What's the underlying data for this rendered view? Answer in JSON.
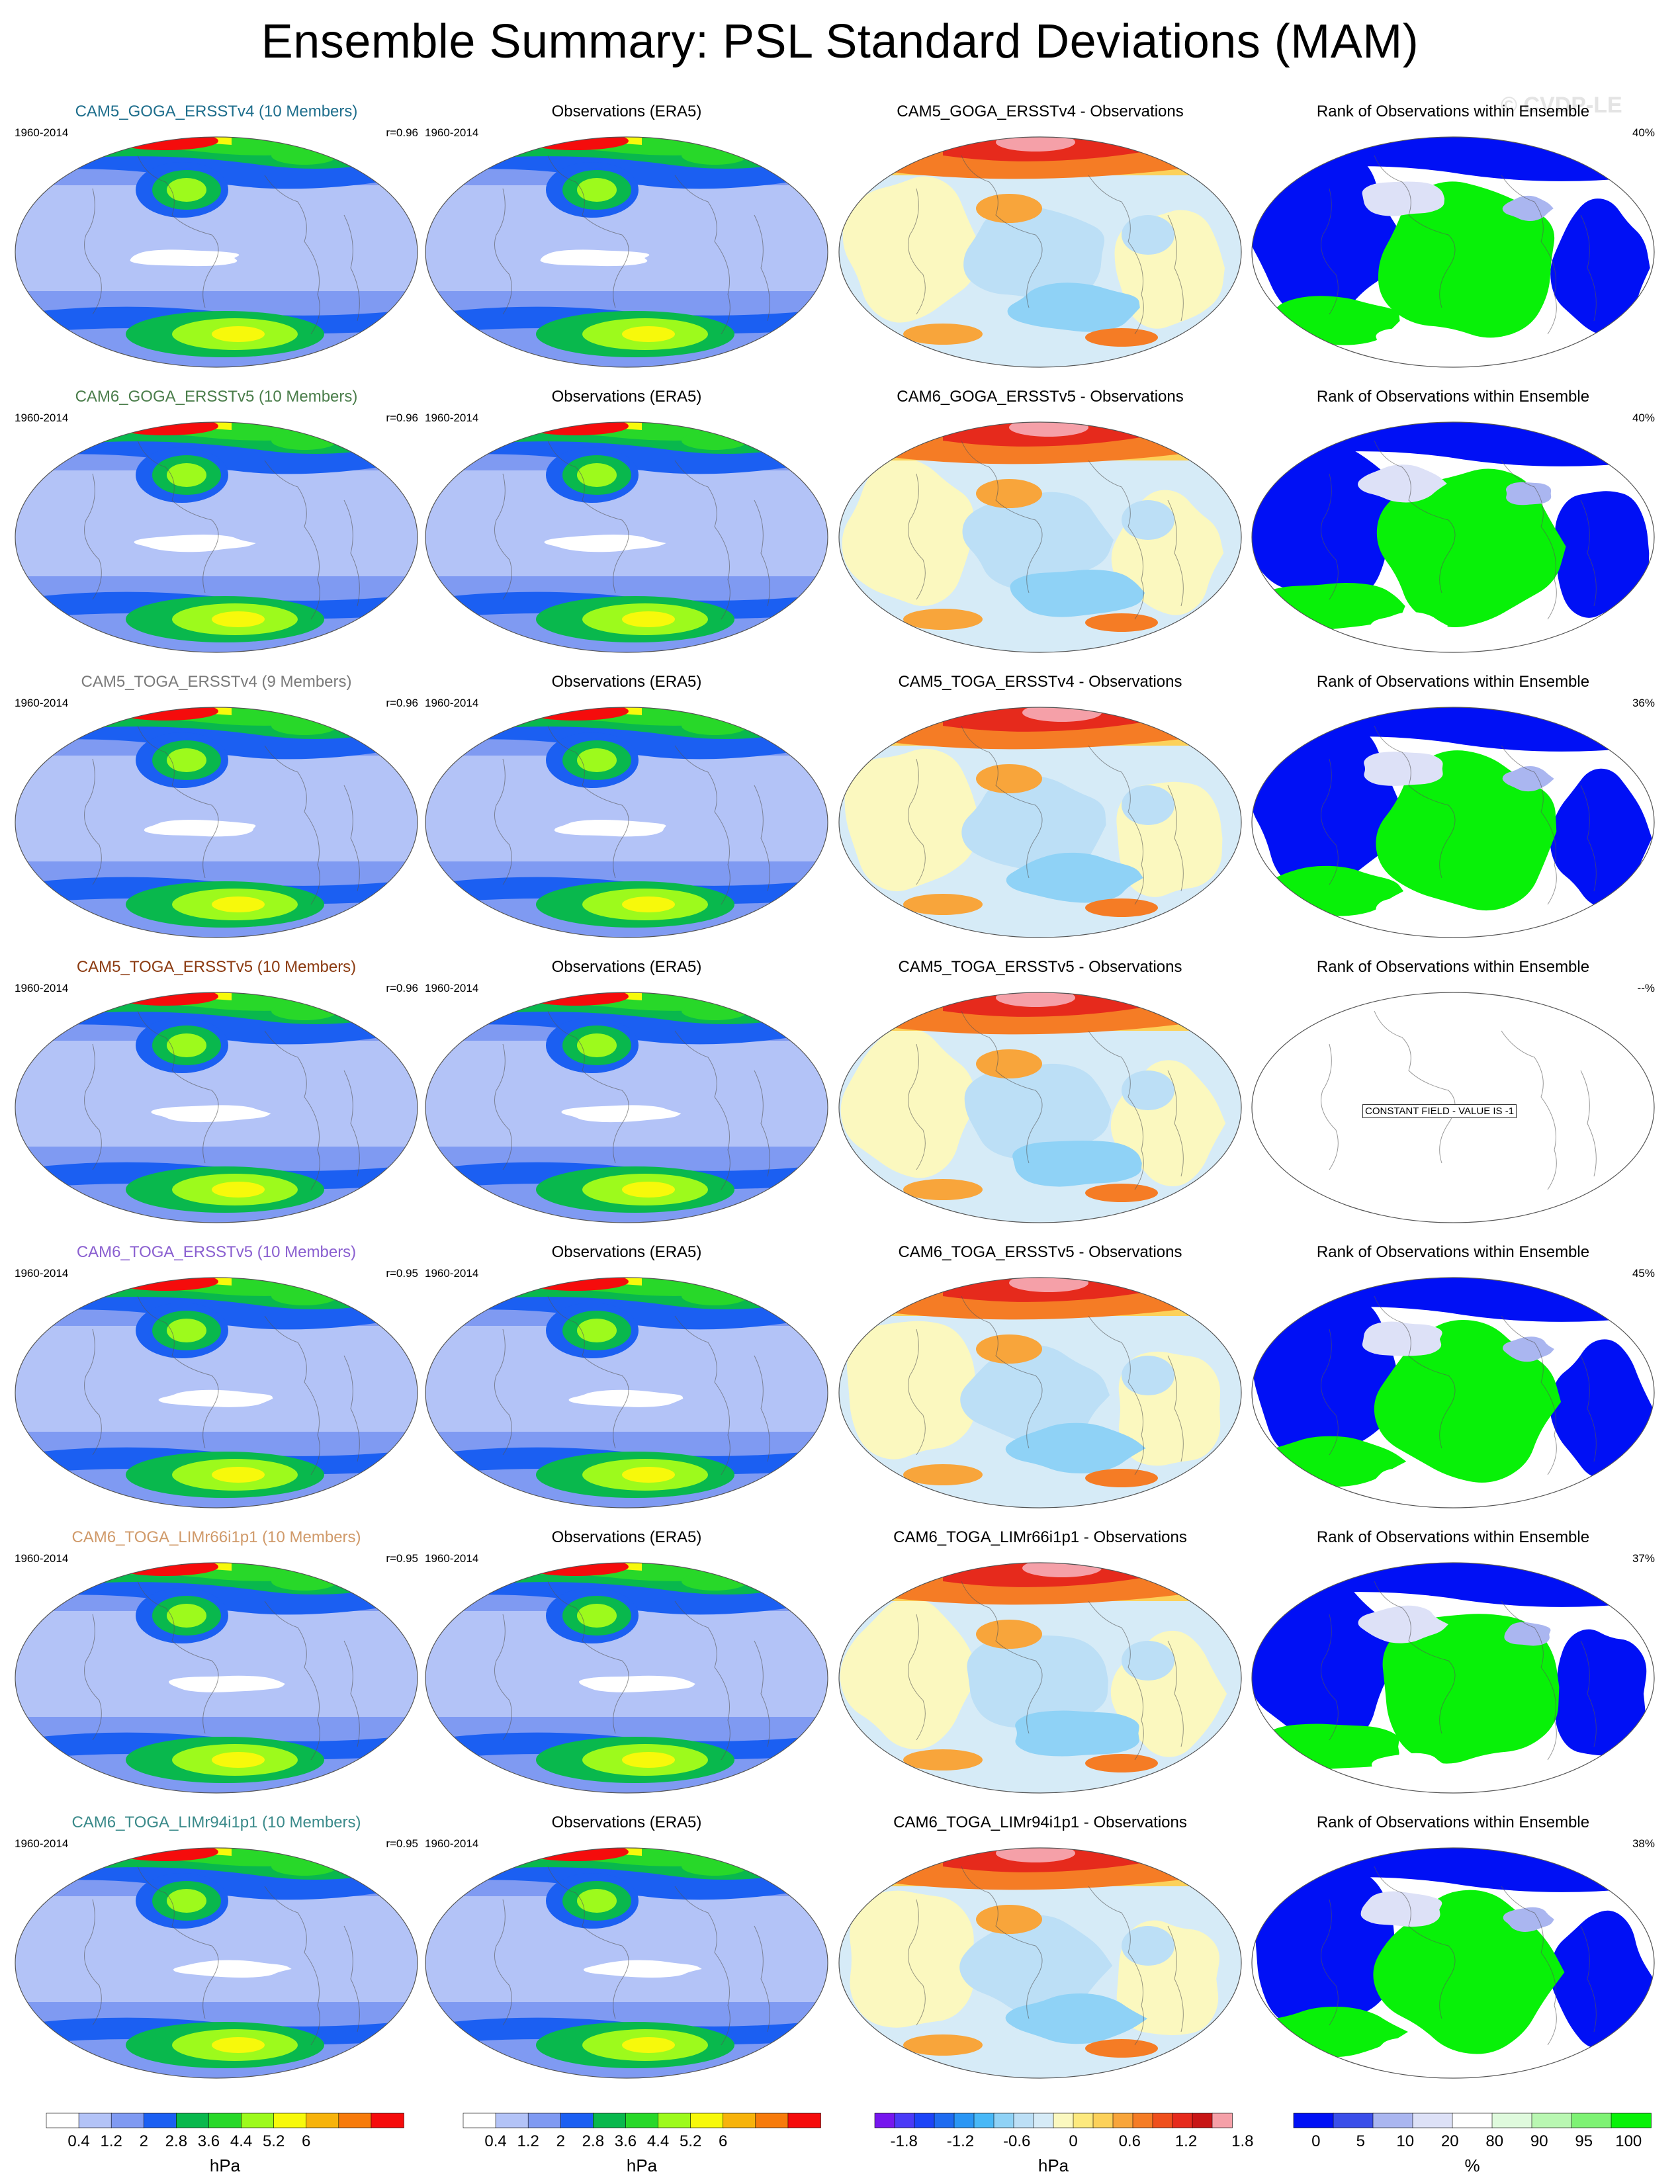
{
  "title": "Ensemble Summary: PSL Standard Deviations (MAM)",
  "watermark": "© CVDP-LE",
  "colors": {
    "std_scale": [
      "#ffffff",
      "#b3c3f7",
      "#7f9af2",
      "#1b5ff2",
      "#09b84d",
      "#28d829",
      "#9dfa1c",
      "#f7f90b",
      "#f7b30b",
      "#f77b0b",
      "#f50c0c"
    ],
    "diff_scale": [
      "#7616ee",
      "#4a3af7",
      "#1c44f7",
      "#1e6bf0",
      "#2a96f4",
      "#48b8f7",
      "#8fd2f6",
      "#bcdff6",
      "#d6ebf7",
      "#fbf8bf",
      "#fde97e",
      "#fcd15a",
      "#f8a53b",
      "#f57c25",
      "#ef4f1c",
      "#e62a1c",
      "#c81616",
      "#f5a0a8"
    ],
    "rank_scale": [
      "#0010f5",
      "#3a4ee9",
      "#aab6f0",
      "#dde1f7",
      "#ffffff",
      "#dffadd",
      "#b9f7b2",
      "#7ef274",
      "#08f108"
    ]
  },
  "colorbars": [
    {
      "ticks": [
        "0.4",
        "1.2",
        "2",
        "2.8",
        "3.6",
        "4.4",
        "5.2",
        "6"
      ],
      "unit": "hPa",
      "type": "std"
    },
    {
      "ticks": [
        "0.4",
        "1.2",
        "2",
        "2.8",
        "3.6",
        "4.4",
        "5.2",
        "6"
      ],
      "unit": "hPa",
      "type": "std"
    },
    {
      "ticks": [
        "-1.8",
        "-1.2",
        "-0.6",
        "0",
        "0.6",
        "1.2",
        "1.8"
      ],
      "unit": "hPa",
      "type": "diff"
    },
    {
      "ticks": [
        "0",
        "5",
        "10",
        "20",
        "80",
        "90",
        "95",
        "100"
      ],
      "unit": "%",
      "type": "rank"
    }
  ],
  "rows": [
    {
      "model": {
        "title": "CAM5_GOGA_ERSSTv4 (10 Members)",
        "color": "#1e6e8c",
        "years": "1960-2014",
        "r": "r=0.96"
      },
      "obs": {
        "title": "Observations (ERA5)",
        "years": "1960-2014"
      },
      "diff": {
        "title": "CAM5_GOGA_ERSSTv4 - Observations"
      },
      "rank": {
        "title": "Rank of Observations within Ensemble",
        "pct": "40%"
      }
    },
    {
      "model": {
        "title": "CAM6_GOGA_ERSSTv5 (10 Members)",
        "color": "#4a7d4a",
        "years": "1960-2014",
        "r": "r=0.96"
      },
      "obs": {
        "title": "Observations (ERA5)",
        "years": "1960-2014"
      },
      "diff": {
        "title": "CAM6_GOGA_ERSSTv5 - Observations"
      },
      "rank": {
        "title": "Rank of Observations within Ensemble",
        "pct": "40%"
      }
    },
    {
      "model": {
        "title": "CAM5_TOGA_ERSSTv4 (9 Members)",
        "color": "#7a7a7a",
        "years": "1960-2014",
        "r": "r=0.96"
      },
      "obs": {
        "title": "Observations (ERA5)",
        "years": "1960-2014"
      },
      "diff": {
        "title": "CAM5_TOGA_ERSSTv4 - Observations"
      },
      "rank": {
        "title": "Rank of Observations within Ensemble",
        "pct": "36%"
      }
    },
    {
      "model": {
        "title": "CAM5_TOGA_ERSSTv5 (10 Members)",
        "color": "#8b3a10",
        "years": "1960-2014",
        "r": "r=0.96"
      },
      "obs": {
        "title": "Observations (ERA5)",
        "years": "1960-2014"
      },
      "diff": {
        "title": "CAM5_TOGA_ERSSTv5 - Observations"
      },
      "rank": {
        "title": "Rank of Observations within Ensemble",
        "pct": "--%",
        "constant": "CONSTANT FIELD - VALUE IS -1"
      }
    },
    {
      "model": {
        "title": "CAM6_TOGA_ERSSTv5 (10 Members)",
        "color": "#8a5fd0",
        "years": "1960-2014",
        "r": "r=0.95"
      },
      "obs": {
        "title": "Observations (ERA5)",
        "years": "1960-2014"
      },
      "diff": {
        "title": "CAM6_TOGA_ERSSTv5 - Observations"
      },
      "rank": {
        "title": "Rank of Observations within Ensemble",
        "pct": "45%"
      }
    },
    {
      "model": {
        "title": "CAM6_TOGA_LIMr66i1p1 (10 Members)",
        "color": "#d09a6a",
        "years": "1960-2014",
        "r": "r=0.95"
      },
      "obs": {
        "title": "Observations (ERA5)",
        "years": "1960-2014"
      },
      "diff": {
        "title": "CAM6_TOGA_LIMr66i1p1 - Observations"
      },
      "rank": {
        "title": "Rank of Observations within Ensemble",
        "pct": "37%"
      }
    },
    {
      "model": {
        "title": "CAM6_TOGA_LIMr94i1p1 (10 Members)",
        "color": "#3a8a8a",
        "years": "1960-2014",
        "r": "r=0.95"
      },
      "obs": {
        "title": "Observations (ERA5)",
        "years": "1960-2014"
      },
      "diff": {
        "title": "CAM6_TOGA_LIMr94i1p1 - Observations"
      },
      "rank": {
        "title": "Rank of Observations within Ensemble",
        "pct": "38%"
      }
    }
  ]
}
